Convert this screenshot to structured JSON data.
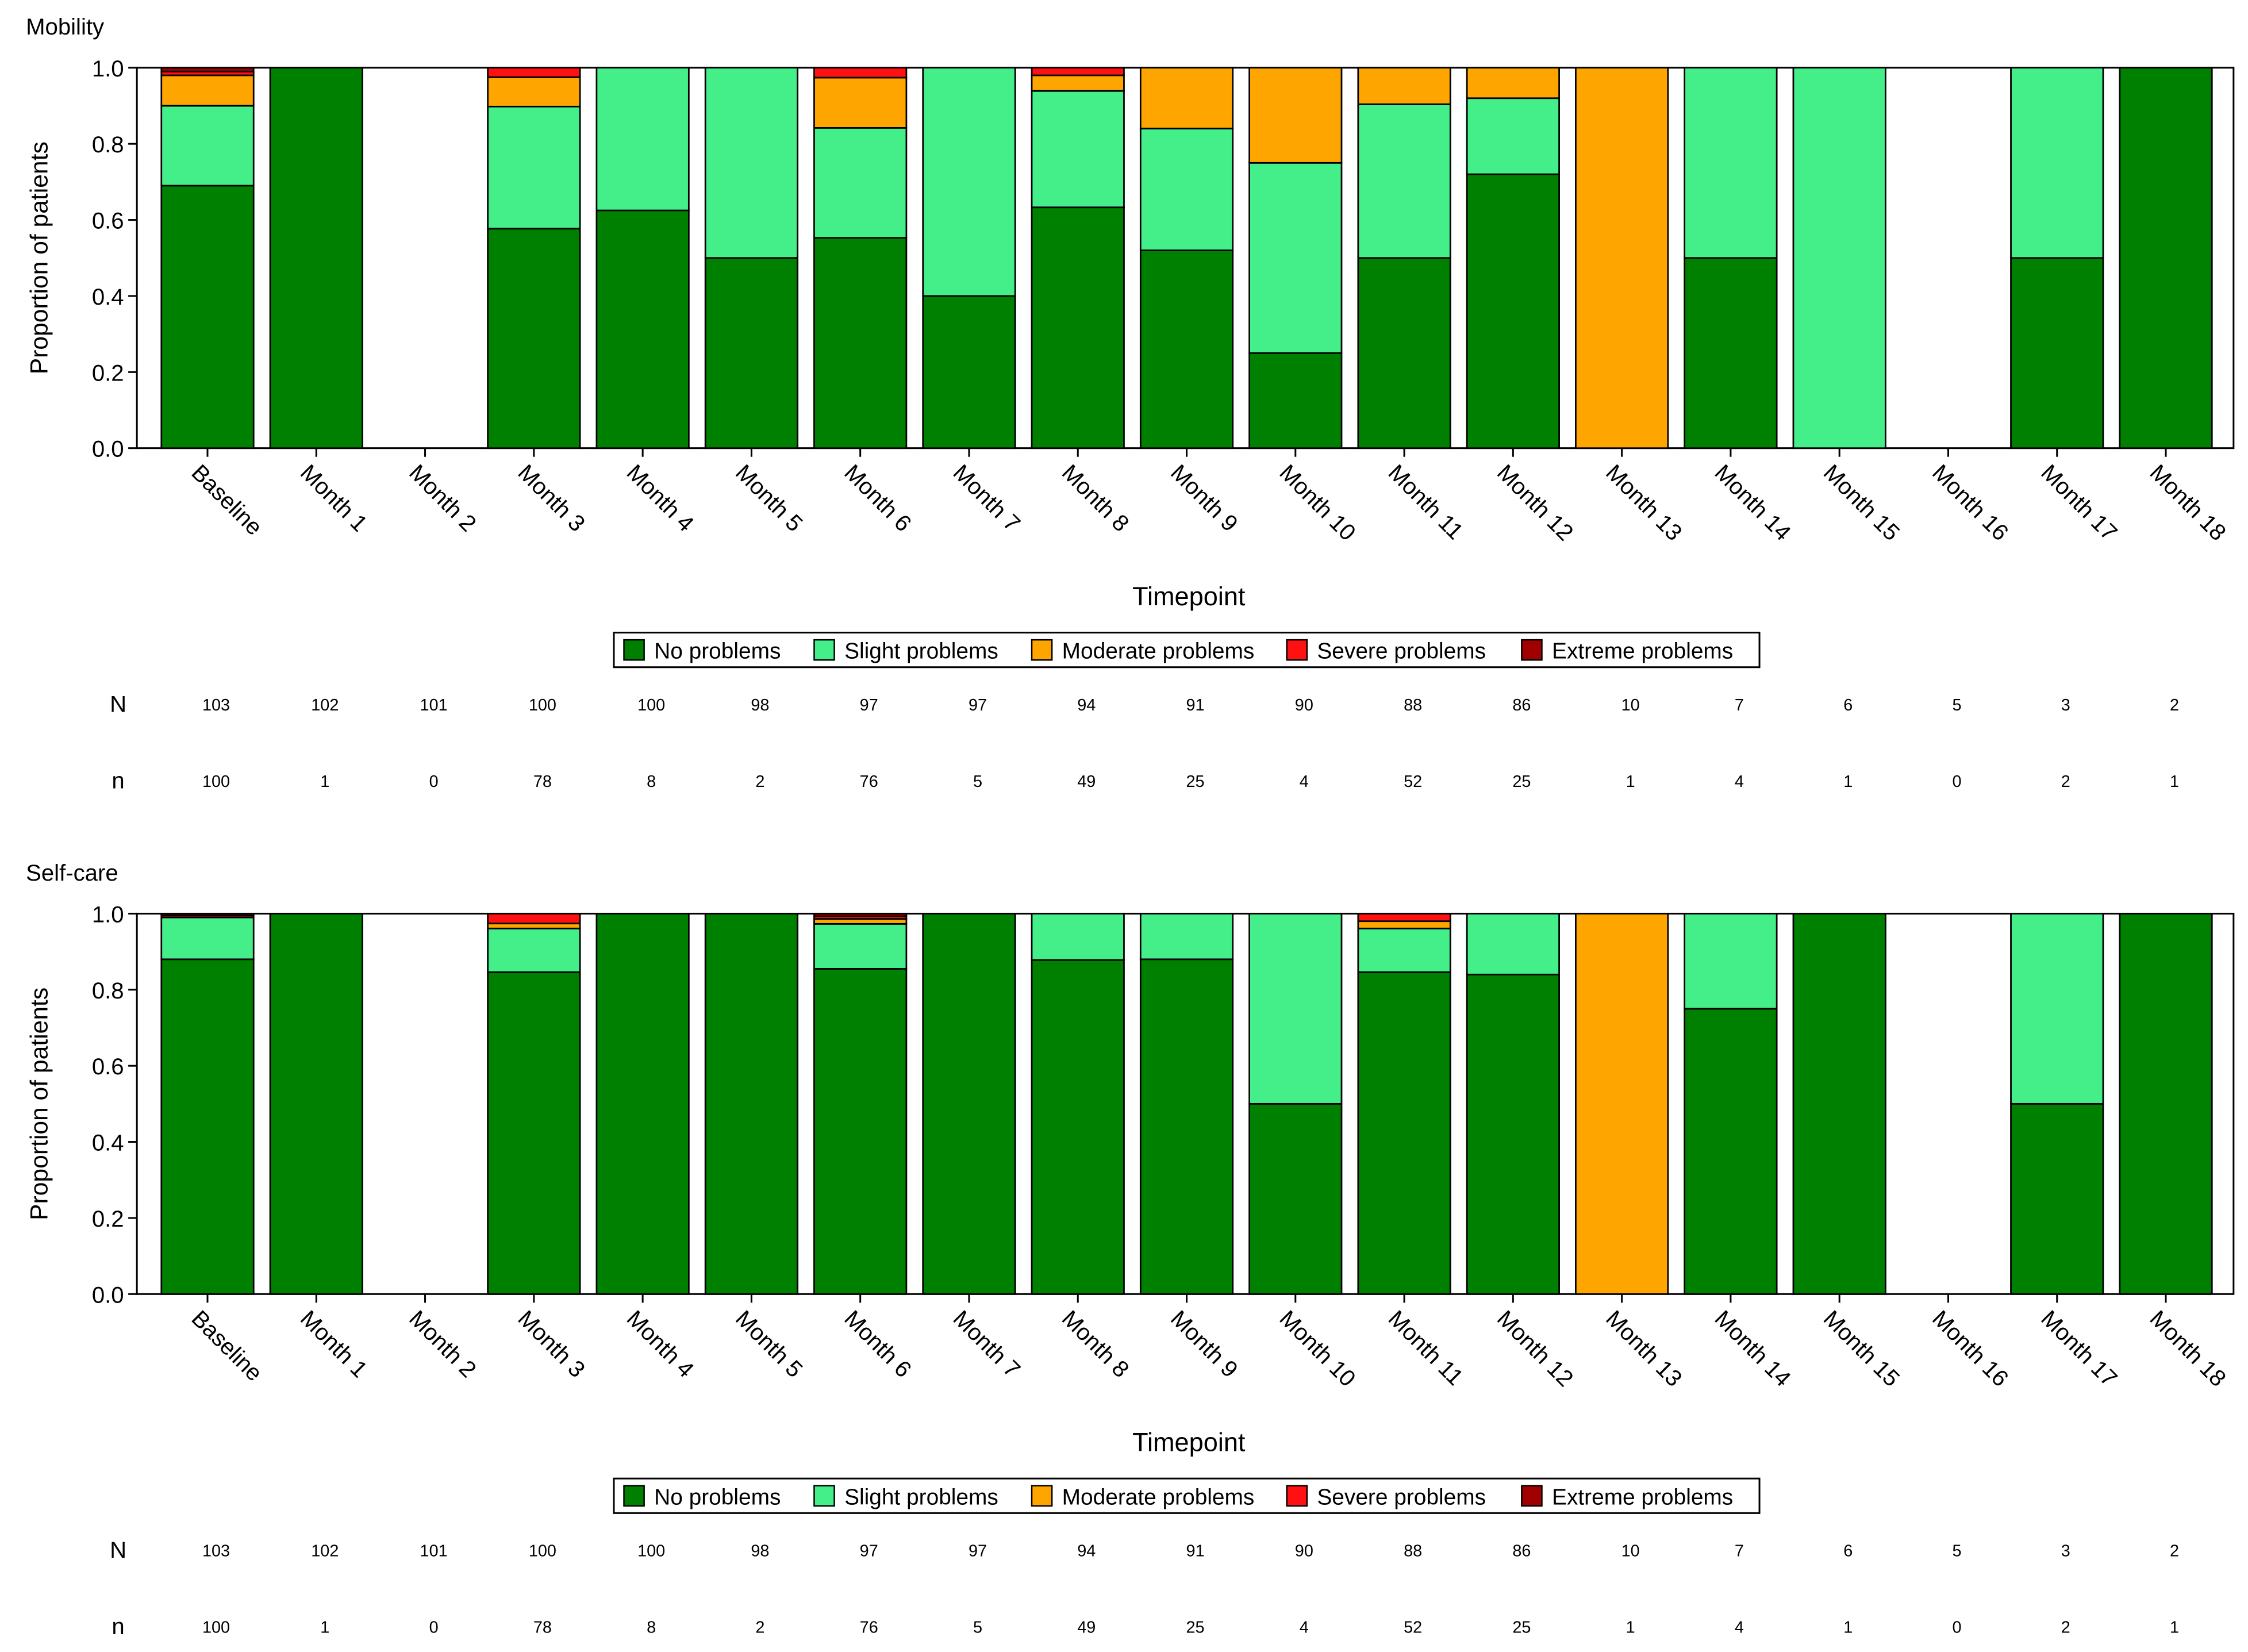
{
  "colors": {
    "No problems": "#008000",
    "Slight problems": "#44ee88",
    "Moderate problems": "#ffa500",
    "Severe problems": "#ff1111",
    "Extreme problems": "#a00000"
  },
  "legend_items": [
    "No problems",
    "Slight problems",
    "Moderate problems",
    "Severe problems",
    "Extreme problems"
  ],
  "row_labels": {
    "N": "N",
    "n": "n"
  },
  "chart_data": [
    {
      "type": "bar",
      "stacked": true,
      "title": "Mobility",
      "xlabel": "Timepoint",
      "ylabel": "Proportion of patients",
      "ylim": [
        0,
        1
      ],
      "yticks": [
        "0.0",
        "0.2",
        "0.4",
        "0.6",
        "0.8",
        "1.0"
      ],
      "legend_position": "below-x-axis",
      "categories": [
        "Baseline",
        "Month 1",
        "Month 2",
        "Month 3",
        "Month 4",
        "Month 5",
        "Month 6",
        "Month 7",
        "Month 8",
        "Month 9",
        "Month 10",
        "Month 11",
        "Month 12",
        "Month 13",
        "Month 14",
        "Month 15",
        "Month 16",
        "Month 17",
        "Month 18"
      ],
      "series": [
        {
          "name": "No problems",
          "values": [
            0.69,
            1.0,
            0,
            0.577,
            0.625,
            0.5,
            0.553,
            0.4,
            0.633,
            0.52,
            0.25,
            0.5,
            0.72,
            0,
            0.5,
            0,
            0,
            0.5,
            1.0
          ]
        },
        {
          "name": "Slight problems",
          "values": [
            0.21,
            0,
            0,
            0.321,
            0.375,
            0.5,
            0.289,
            0.6,
            0.306,
            0.32,
            0.5,
            0.404,
            0.2,
            0,
            0.5,
            1.0,
            0,
            0.5,
            0
          ]
        },
        {
          "name": "Moderate problems",
          "values": [
            0.08,
            0,
            0,
            0.077,
            0,
            0,
            0.132,
            0,
            0.041,
            0.16,
            0.25,
            0.096,
            0.08,
            1.0,
            0,
            0,
            0,
            0,
            0
          ]
        },
        {
          "name": "Severe problems",
          "values": [
            0.01,
            0,
            0,
            0.025,
            0,
            0,
            0.026,
            0,
            0.02,
            0,
            0,
            0,
            0,
            0,
            0,
            0,
            0,
            0,
            0
          ]
        },
        {
          "name": "Extreme problems",
          "values": [
            0.01,
            0,
            0,
            0,
            0,
            0,
            0,
            0,
            0,
            0,
            0,
            0,
            0,
            0,
            0,
            0,
            0,
            0,
            0
          ]
        }
      ],
      "N": [
        "103",
        "102",
        "101",
        "100",
        "100",
        "98",
        "97",
        "97",
        "94",
        "91",
        "90",
        "88",
        "86",
        "10",
        "7",
        "6",
        "5",
        "3",
        "2"
      ],
      "n": [
        "100",
        "1",
        "0",
        "78",
        "8",
        "2",
        "76",
        "5",
        "49",
        "25",
        "4",
        "52",
        "25",
        "1",
        "4",
        "1",
        "0",
        "2",
        "1"
      ]
    },
    {
      "type": "bar",
      "stacked": true,
      "title": "Self-care",
      "xlabel": "Timepoint",
      "ylabel": "Proportion of patients",
      "ylim": [
        0,
        1
      ],
      "yticks": [
        "0.0",
        "0.2",
        "0.4",
        "0.6",
        "0.8",
        "1.0"
      ],
      "legend_position": "below-x-axis",
      "categories": [
        "Baseline",
        "Month 1",
        "Month 2",
        "Month 3",
        "Month 4",
        "Month 5",
        "Month 6",
        "Month 7",
        "Month 8",
        "Month 9",
        "Month 10",
        "Month 11",
        "Month 12",
        "Month 13",
        "Month 14",
        "Month 15",
        "Month 16",
        "Month 17",
        "Month 18"
      ],
      "series": [
        {
          "name": "No problems",
          "values": [
            0.88,
            1.0,
            0,
            0.846,
            1.0,
            1.0,
            0.855,
            1.0,
            0.878,
            0.88,
            0.5,
            0.846,
            0.84,
            0,
            0.75,
            1.0,
            0,
            0.5,
            1.0
          ]
        },
        {
          "name": "Slight problems",
          "values": [
            0.11,
            0,
            0,
            0.115,
            0,
            0,
            0.118,
            0,
            0.122,
            0.12,
            0.5,
            0.115,
            0.16,
            0,
            0.25,
            0,
            0,
            0.5,
            0
          ]
        },
        {
          "name": "Moderate problems",
          "values": [
            0,
            0,
            0,
            0.013,
            0,
            0,
            0.013,
            0,
            0,
            0,
            0,
            0.019,
            0,
            1.0,
            0,
            0,
            0,
            0,
            0
          ]
        },
        {
          "name": "Severe problems",
          "values": [
            0.005,
            0,
            0,
            0.026,
            0,
            0,
            0.007,
            0,
            0,
            0,
            0,
            0.02,
            0,
            0,
            0,
            0,
            0,
            0,
            0
          ]
        },
        {
          "name": "Extreme problems",
          "values": [
            0.005,
            0,
            0,
            0,
            0,
            0,
            0.007,
            0,
            0,
            0,
            0,
            0,
            0,
            0,
            0,
            0,
            0,
            0,
            0
          ]
        }
      ],
      "N": [
        "103",
        "102",
        "101",
        "100",
        "100",
        "98",
        "97",
        "97",
        "94",
        "91",
        "90",
        "88",
        "86",
        "10",
        "7",
        "6",
        "5",
        "3",
        "2"
      ],
      "n": [
        "100",
        "1",
        "0",
        "78",
        "8",
        "2",
        "76",
        "5",
        "49",
        "25",
        "4",
        "52",
        "25",
        "1",
        "4",
        "1",
        "0",
        "2",
        "1"
      ]
    }
  ]
}
